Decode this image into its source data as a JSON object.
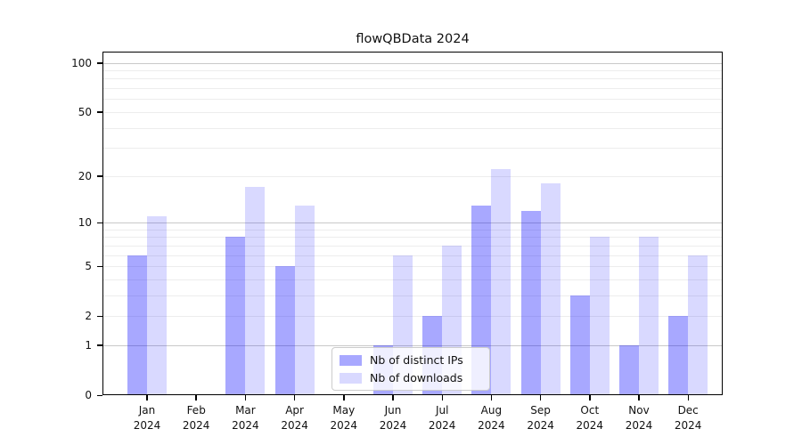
{
  "chart_data": {
    "type": "bar",
    "title": "flowQBData 2024",
    "categories": [
      "Jan",
      "Feb",
      "Mar",
      "Apr",
      "May",
      "Jun",
      "Jul",
      "Aug",
      "Sep",
      "Oct",
      "Nov",
      "Dec"
    ],
    "category_year": "2024",
    "series": [
      {
        "name": "Nb of distinct IPs",
        "color": "rgba(0,0,255,0.34)",
        "values": [
          6,
          0,
          8,
          5,
          0,
          1,
          2,
          13,
          12,
          3,
          1,
          2
        ]
      },
      {
        "name": "Nb of downloads",
        "color": "rgba(0,0,255,0.15)",
        "values": [
          11,
          0,
          17,
          13,
          0,
          6,
          7,
          22,
          18,
          8,
          8,
          6
        ]
      }
    ],
    "y_scale": "log10(1+v)",
    "y_tick_values": [
      0,
      1,
      2,
      5,
      10,
      20,
      50,
      100
    ],
    "y_tick_labels": [
      "0",
      "1",
      "2",
      "5",
      "10",
      "20",
      "50",
      "100"
    ],
    "y_major_grid": [
      1,
      10,
      100
    ],
    "y_minor_grid": [
      2,
      3,
      4,
      5,
      6,
      7,
      8,
      9,
      20,
      30,
      40,
      50,
      60,
      70,
      80,
      90
    ],
    "ylim": [
      0,
      117
    ],
    "xlabel": "",
    "ylabel": "",
    "grid": true,
    "legend_position": "lower center",
    "colors": {
      "bar_distinct_ips": "#a8a8f6",
      "bar_downloads": "#d9d9fb",
      "major_grid": "#c9c9c9",
      "minor_grid": "#ededed",
      "spine": "#000000",
      "background": "#ffffff",
      "text": "#111111"
    }
  }
}
